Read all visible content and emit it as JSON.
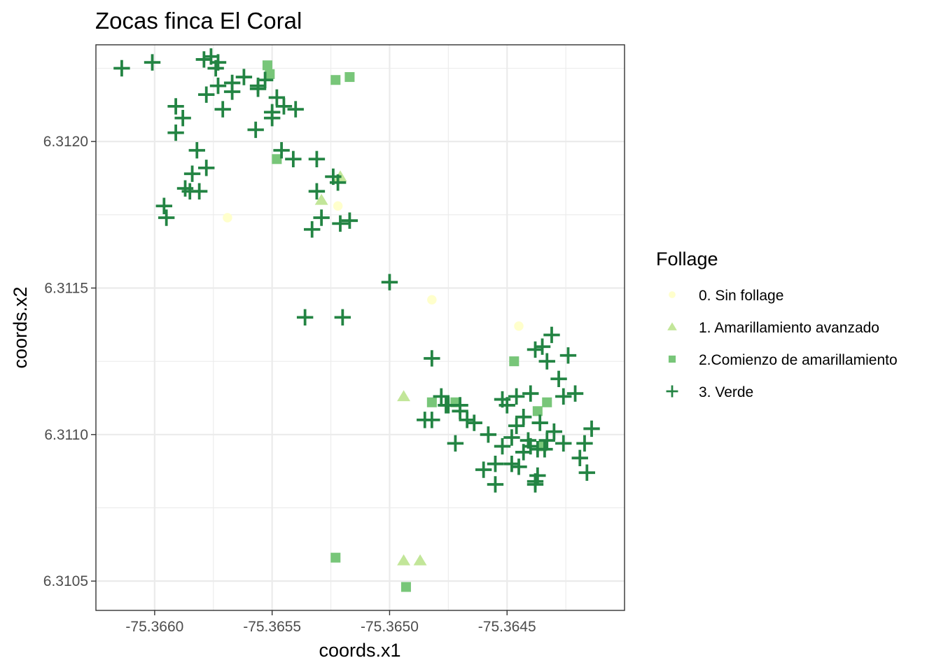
{
  "chart_data": {
    "type": "scatter",
    "title": "Zocas finca El Coral",
    "xlabel": "coords.x1",
    "ylabel": "coords.x2",
    "xlim": [
      -75.36625,
      -75.364
    ],
    "ylim": [
      6.3104,
      6.31233
    ],
    "x_ticks": [
      -75.366,
      -75.3655,
      -75.365,
      -75.3645
    ],
    "x_tick_labels": [
      "-75.3660",
      "-75.3655",
      "-75.3650",
      "-75.3645"
    ],
    "y_ticks": [
      6.3105,
      6.311,
      6.3115,
      6.312
    ],
    "y_tick_labels": [
      "6.3105",
      "6.3110",
      "6.3115",
      "6.3120"
    ],
    "grid": true,
    "legend": {
      "title": "Follage",
      "position": "right"
    },
    "series": [
      {
        "name": "0. Sin follage",
        "shape": "circle",
        "color": "#ffffcc",
        "x": [
          -75.36569,
          -75.36522,
          -75.36482,
          -75.36445
        ],
        "y": [
          6.31174,
          6.31178,
          6.31146,
          6.31137
        ]
      },
      {
        "name": "1. Amarillamiento avanzado",
        "shape": "triangle",
        "color": "#c2e699",
        "x": [
          -75.36521,
          -75.36529,
          -75.36494,
          -75.36487,
          -75.36494
        ],
        "y": [
          6.31188,
          6.3118,
          6.31113,
          6.31057,
          6.31057
        ]
      },
      {
        "name": "2.Comienzo de amarillamiento",
        "shape": "square",
        "color": "#78c679",
        "x": [
          -75.36552,
          -75.36551,
          -75.36523,
          -75.36517,
          -75.36548,
          -75.36523,
          -75.36493,
          -75.36482,
          -75.36472,
          -75.36447,
          -75.36437,
          -75.36433,
          -75.36435
        ],
        "y": [
          6.31226,
          6.31223,
          6.31221,
          6.31222,
          6.31194,
          6.31058,
          6.31048,
          6.31111,
          6.31111,
          6.31125,
          6.31108,
          6.31111,
          6.31096
        ]
      },
      {
        "name": "3. Verde",
        "shape": "plus",
        "color": "#238443",
        "x": [
          -75.36614,
          -75.36601,
          -75.36574,
          -75.36573,
          -75.36567,
          -75.36578,
          -75.36591,
          -75.36591,
          -75.36588,
          -75.36562,
          -75.36556,
          -75.36567,
          -75.36571,
          -75.36579,
          -75.36576,
          -75.36573,
          -75.36553,
          -75.36556,
          -75.3655,
          -75.36557,
          -75.3655,
          -75.36548,
          -75.36545,
          -75.3654,
          -75.36546,
          -75.36541,
          -75.36584,
          -75.36587,
          -75.36581,
          -75.36585,
          -75.36582,
          -75.36578,
          -75.36596,
          -75.36595,
          -75.36533,
          -75.36529,
          -75.36531,
          -75.36531,
          -75.36524,
          -75.36522,
          -75.36517,
          -75.36521,
          -75.36536,
          -75.3652,
          -75.365,
          -75.36482,
          -75.36478,
          -75.36476,
          -75.3647,
          -75.36467,
          -75.36464,
          -75.36472,
          -75.36458,
          -75.3646,
          -75.36455,
          -75.36455,
          -75.36452,
          -75.36448,
          -75.36445,
          -75.36438,
          -75.36443,
          -75.3644,
          -75.36436,
          -75.3644,
          -75.36433,
          -75.36446,
          -75.3645,
          -75.36448,
          -75.36443,
          -75.36441,
          -75.36437,
          -75.36437,
          -75.36433,
          -75.36428,
          -75.36424,
          -75.36438,
          -75.36435,
          -75.36431,
          -75.36426,
          -75.36421,
          -75.36417,
          -75.36414,
          -75.36419,
          -75.36416,
          -75.36426,
          -75.3643,
          -75.36434,
          -75.36438,
          -75.36452,
          -75.36475,
          -75.36482,
          -75.36485,
          -75.3647,
          -75.36446
        ],
        "y": [
          6.31225,
          6.31227,
          6.31225,
          6.31219,
          6.3122,
          6.31216,
          6.31212,
          6.31203,
          6.31208,
          6.31222,
          6.31219,
          6.31217,
          6.31211,
          6.31228,
          6.31229,
          6.31227,
          6.31221,
          6.31218,
          6.3121,
          6.31204,
          6.31208,
          6.31215,
          6.31212,
          6.31211,
          6.31197,
          6.31194,
          6.31189,
          6.31184,
          6.31183,
          6.31183,
          6.31197,
          6.31191,
          6.31178,
          6.31174,
          6.3117,
          6.31174,
          6.31183,
          6.31194,
          6.31188,
          6.31186,
          6.31173,
          6.31172,
          6.3114,
          6.3114,
          6.31152,
          6.31126,
          6.31113,
          6.3111,
          6.3111,
          6.31105,
          6.31104,
          6.31097,
          6.311,
          6.31088,
          6.3109,
          6.31083,
          6.31096,
          6.3109,
          6.31089,
          6.31083,
          6.31106,
          6.31114,
          6.31104,
          6.31096,
          6.31098,
          6.31113,
          6.3111,
          6.31099,
          6.31094,
          6.31098,
          6.31086,
          6.31095,
          6.31125,
          6.31119,
          6.31127,
          6.31129,
          6.3113,
          6.31134,
          6.31113,
          6.31114,
          6.31097,
          6.31102,
          6.31092,
          6.31087,
          6.31097,
          6.31101,
          6.31095,
          6.31084,
          6.31112,
          6.3111,
          6.31105,
          6.31105,
          6.31108,
          6.31103
        ]
      }
    ]
  }
}
